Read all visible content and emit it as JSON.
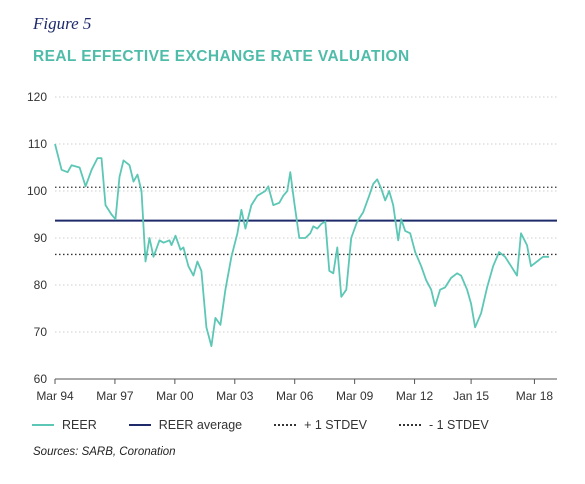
{
  "figure_label": "Figure 5",
  "title": "REAL EFFECTIVE EXCHANGE RATE VALUATION",
  "source": "Sources: SARB, Coronation",
  "colors": {
    "reer": "#5cc7b5",
    "average": "#1f2a6b",
    "stdev": "#333333",
    "grid": "#cfcfcf",
    "title": "#4fbca9"
  },
  "chart_data": {
    "type": "line",
    "title": "REAL EFFECTIVE EXCHANGE RATE VALUATION",
    "xlabel": "",
    "ylabel": "",
    "ylim": [
      60,
      120
    ],
    "yticks": [
      60,
      70,
      80,
      90,
      100,
      110,
      120
    ],
    "xlim": [
      1994.17,
      2019.3
    ],
    "xticks": [
      {
        "label": "Mar 94",
        "x": 1994.17
      },
      {
        "label": "Mar 97",
        "x": 1997.17
      },
      {
        "label": "Mar 00",
        "x": 2000.17
      },
      {
        "label": "Mar 03",
        "x": 2003.17
      },
      {
        "label": "Mar 06",
        "x": 2006.17
      },
      {
        "label": "Mar 09",
        "x": 2009.17
      },
      {
        "label": "Mar 12",
        "x": 2012.17
      },
      {
        "label": "Jan 15",
        "x": 2015.0
      },
      {
        "label": "Mar 18",
        "x": 2018.17
      }
    ],
    "grid": "horizontal",
    "legend_position": "bottom",
    "series": [
      {
        "name": "REER",
        "style": "line",
        "points": [
          [
            1994.17,
            110
          ],
          [
            1994.5,
            104.5
          ],
          [
            1994.8,
            104
          ],
          [
            1995.0,
            105.5
          ],
          [
            1995.4,
            105
          ],
          [
            1995.7,
            101
          ],
          [
            1996.0,
            104.5
          ],
          [
            1996.3,
            107
          ],
          [
            1996.5,
            107
          ],
          [
            1996.7,
            97
          ],
          [
            1997.0,
            95
          ],
          [
            1997.2,
            94
          ],
          [
            1997.4,
            103
          ],
          [
            1997.6,
            106.5
          ],
          [
            1997.9,
            105.5
          ],
          [
            1998.1,
            102
          ],
          [
            1998.3,
            103.5
          ],
          [
            1998.5,
            100
          ],
          [
            1998.7,
            85
          ],
          [
            1998.9,
            90
          ],
          [
            1999.1,
            86
          ],
          [
            1999.4,
            89.5
          ],
          [
            1999.6,
            89
          ],
          [
            1999.9,
            89.5
          ],
          [
            2000.0,
            88.5
          ],
          [
            2000.2,
            90.5
          ],
          [
            2000.45,
            87.5
          ],
          [
            2000.6,
            88
          ],
          [
            2000.85,
            84
          ],
          [
            2001.1,
            82
          ],
          [
            2001.3,
            85
          ],
          [
            2001.5,
            83
          ],
          [
            2001.75,
            71
          ],
          [
            2002.0,
            67
          ],
          [
            2002.2,
            73
          ],
          [
            2002.45,
            71.5
          ],
          [
            2002.7,
            79
          ],
          [
            2003.0,
            86
          ],
          [
            2003.3,
            91
          ],
          [
            2003.5,
            96
          ],
          [
            2003.7,
            92
          ],
          [
            2004.0,
            97
          ],
          [
            2004.3,
            99
          ],
          [
            2004.7,
            100
          ],
          [
            2004.85,
            101
          ],
          [
            2005.1,
            97
          ],
          [
            2005.4,
            97.5
          ],
          [
            2005.6,
            99
          ],
          [
            2005.8,
            100
          ],
          [
            2005.95,
            104
          ],
          [
            2006.15,
            97.5
          ],
          [
            2006.4,
            90
          ],
          [
            2006.7,
            90
          ],
          [
            2006.95,
            91
          ],
          [
            2007.1,
            92.5
          ],
          [
            2007.3,
            92
          ],
          [
            2007.5,
            93
          ],
          [
            2007.7,
            93.5
          ],
          [
            2007.9,
            83
          ],
          [
            2008.1,
            82.5
          ],
          [
            2008.3,
            88
          ],
          [
            2008.5,
            77.5
          ],
          [
            2008.75,
            79
          ],
          [
            2009.0,
            90
          ],
          [
            2009.3,
            93.5
          ],
          [
            2009.6,
            95.5
          ],
          [
            2009.9,
            99
          ],
          [
            2010.1,
            101.5
          ],
          [
            2010.3,
            102.5
          ],
          [
            2010.5,
            100.5
          ],
          [
            2010.7,
            98
          ],
          [
            2010.9,
            100
          ],
          [
            2011.1,
            97
          ],
          [
            2011.35,
            89.5
          ],
          [
            2011.5,
            94
          ],
          [
            2011.7,
            91.5
          ],
          [
            2011.95,
            91
          ],
          [
            2012.2,
            87
          ],
          [
            2012.5,
            84
          ],
          [
            2012.75,
            81
          ],
          [
            2013.0,
            79
          ],
          [
            2013.2,
            75.5
          ],
          [
            2013.45,
            79
          ],
          [
            2013.7,
            79.5
          ],
          [
            2014.0,
            81.5
          ],
          [
            2014.3,
            82.5
          ],
          [
            2014.5,
            82
          ],
          [
            2014.8,
            79
          ],
          [
            2015.0,
            76
          ],
          [
            2015.2,
            71
          ],
          [
            2015.5,
            74
          ],
          [
            2015.8,
            79.5
          ],
          [
            2016.1,
            84
          ],
          [
            2016.4,
            87
          ],
          [
            2016.7,
            86
          ],
          [
            2017.0,
            84
          ],
          [
            2017.3,
            82
          ],
          [
            2017.5,
            91
          ],
          [
            2017.8,
            88.5
          ],
          [
            2018.0,
            84
          ],
          [
            2018.3,
            85
          ],
          [
            2018.6,
            86
          ],
          [
            2018.9,
            86
          ]
        ]
      },
      {
        "name": "REER average",
        "style": "flat",
        "value": 93.7
      },
      {
        "name": "+ 1 STDEV",
        "style": "dotted",
        "value": 100.8
      },
      {
        "name": "- 1 STDEV",
        "style": "dotted",
        "value": 86.5
      }
    ]
  }
}
